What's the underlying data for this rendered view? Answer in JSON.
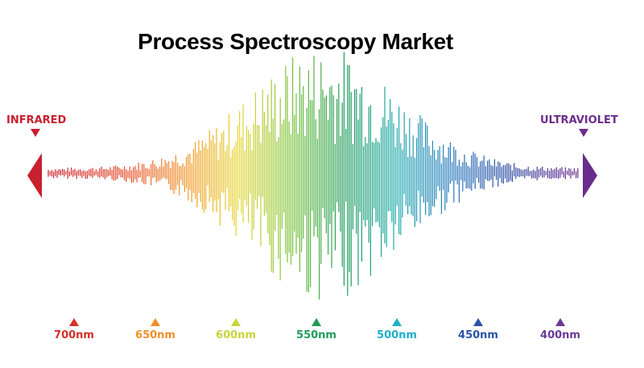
{
  "title": "Process Spectroscopy Market",
  "left_label": "INFRARED",
  "right_label": "ULTRAVIOLET",
  "colors": {
    "infrared": "#c8202f",
    "ultraviolet": "#6a2c8c"
  },
  "markers": [
    {
      "label": "700nm",
      "color": "#d62f2a"
    },
    {
      "label": "650nm",
      "color": "#f0902a"
    },
    {
      "label": "600nm",
      "color": "#c9d43a"
    },
    {
      "label": "550nm",
      "color": "#1f9a5a"
    },
    {
      "label": "500nm",
      "color": "#1fb0c8"
    },
    {
      "label": "450nm",
      "color": "#2a52a8"
    },
    {
      "label": "400nm",
      "color": "#6a3a96"
    }
  ]
}
